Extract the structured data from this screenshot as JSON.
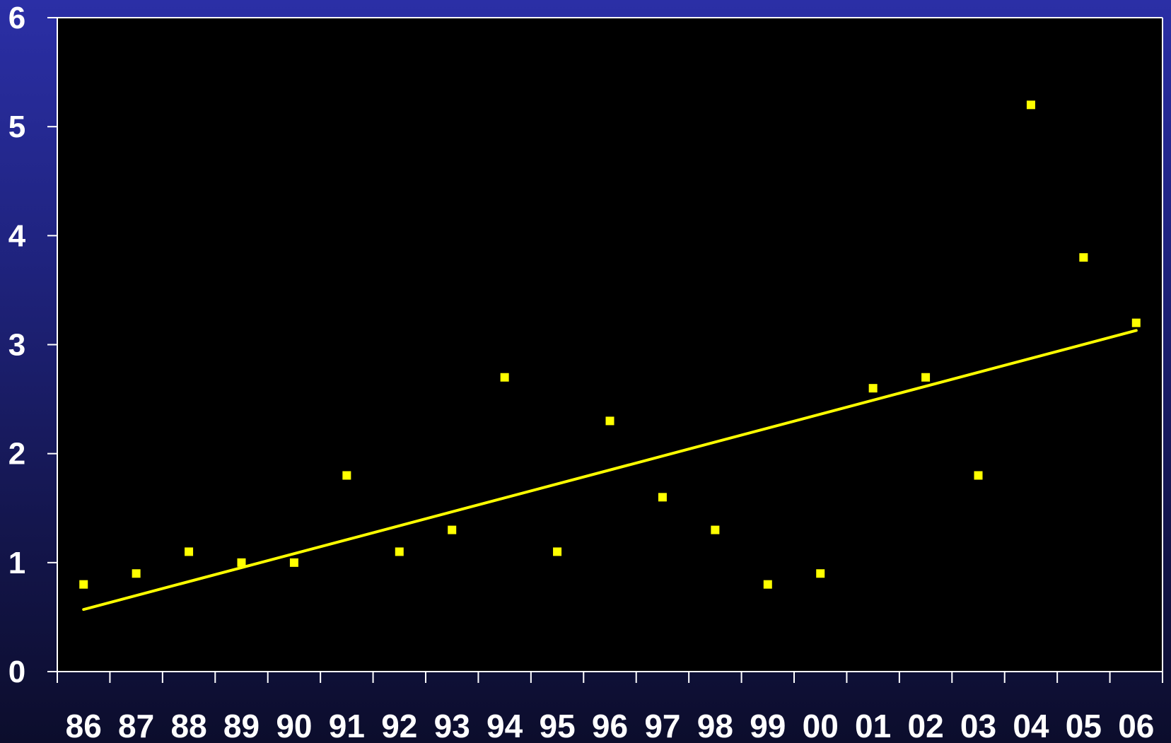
{
  "chart_data": {
    "type": "scatter",
    "x": [
      "86",
      "87",
      "88",
      "89",
      "90",
      "91",
      "92",
      "93",
      "94",
      "95",
      "96",
      "97",
      "98",
      "99",
      "00",
      "01",
      "02",
      "03",
      "04",
      "05",
      "06"
    ],
    "series": [
      {
        "values": [
          0.8,
          0.9,
          1.1,
          1.0,
          1.0,
          1.8,
          1.1,
          1.3,
          2.7,
          1.1,
          2.3,
          1.6,
          1.3,
          0.8,
          0.9,
          2.6,
          2.7,
          1.8,
          5.2,
          3.8,
          3.2
        ],
        "color": "#ffff00",
        "marker": "square"
      }
    ],
    "trendline": {
      "type": "polynomial",
      "color": "#ffff00",
      "start": 0.57,
      "end": 3.13
    },
    "ylim": [
      0,
      6
    ],
    "yticks": [
      "0",
      "1",
      "2",
      "3",
      "4",
      "5",
      "6"
    ],
    "grid": false,
    "plot_background": "#000000",
    "axis_color": "#ffffff"
  }
}
